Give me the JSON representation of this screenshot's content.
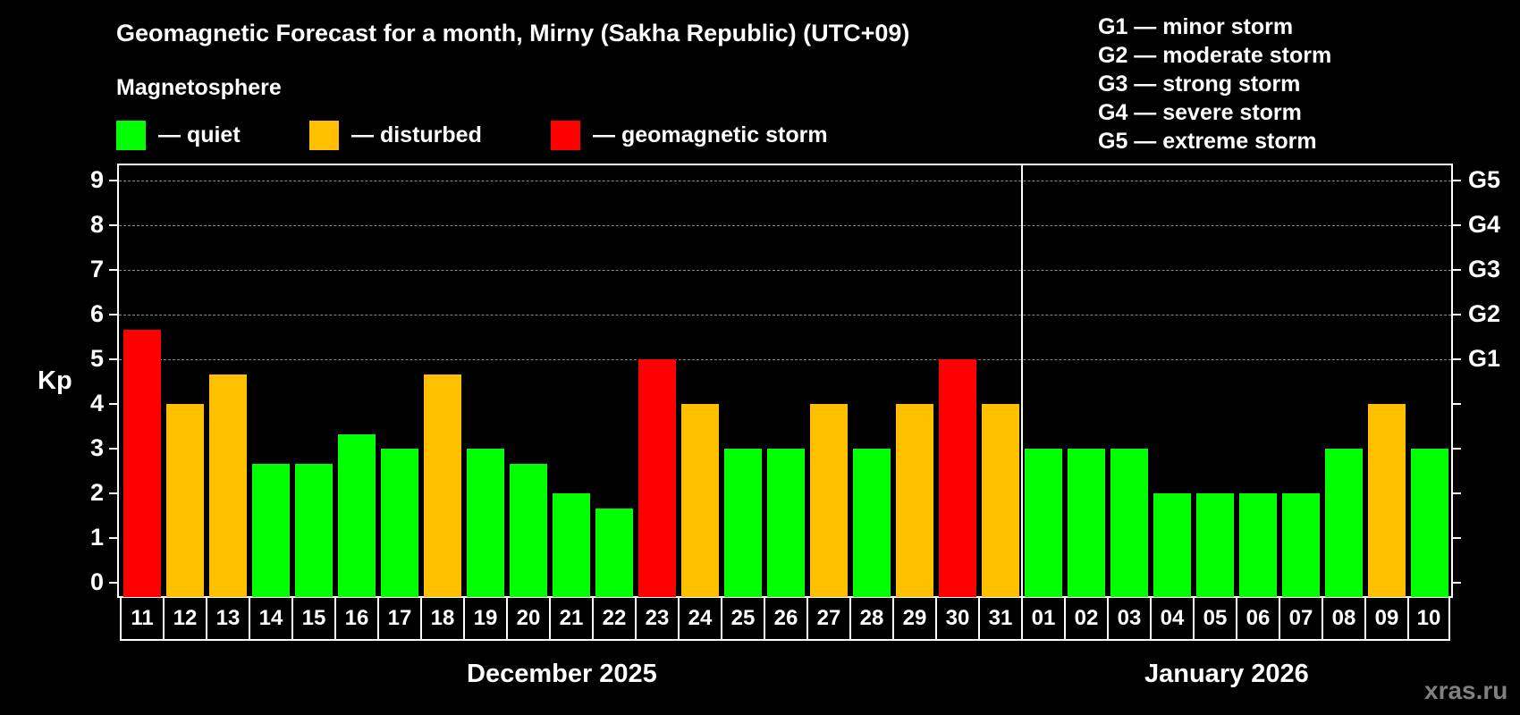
{
  "title": "Geomagnetic Forecast for a month, Mirny (Sakha Republic) (UTC+09)",
  "legend": {
    "heading": "Magnetosphere",
    "items": [
      {
        "label": "— quiet",
        "color": "#00ff00"
      },
      {
        "label": "— disturbed",
        "color": "#ffc000"
      },
      {
        "label": "— geomagnetic storm",
        "color": "#ff0000"
      }
    ]
  },
  "g_scale_legend": [
    "G1 — minor storm",
    "G2 — moderate storm",
    "G3 — strong storm",
    "G4 — severe storm",
    "G5 — extreme storm"
  ],
  "axes": {
    "ylabel": "Kp",
    "yticks": [
      "0",
      "1",
      "2",
      "3",
      "4",
      "5",
      "6",
      "7",
      "8",
      "9"
    ],
    "right_labels": {
      "5": "G1",
      "6": "G2",
      "7": "G3",
      "8": "G4",
      "9": "G5"
    }
  },
  "months": {
    "first": "December 2025",
    "second": "January 2026"
  },
  "watermark": "xras.ru",
  "chart_data": {
    "type": "bar",
    "title": "Geomagnetic Forecast for a month, Mirny (Sakha Republic) (UTC+09)",
    "xlabel": "",
    "ylabel": "Kp",
    "ylim": [
      0,
      9
    ],
    "grid": true,
    "categories": [
      "11",
      "12",
      "13",
      "14",
      "15",
      "16",
      "17",
      "18",
      "19",
      "20",
      "21",
      "22",
      "23",
      "24",
      "25",
      "26",
      "27",
      "28",
      "29",
      "30",
      "31",
      "01",
      "02",
      "03",
      "04",
      "05",
      "06",
      "07",
      "08",
      "09",
      "10"
    ],
    "month_groups": [
      {
        "label": "December 2025",
        "from": "11",
        "to": "31"
      },
      {
        "label": "January 2026",
        "from": "01",
        "to": "10"
      }
    ],
    "values": [
      5.67,
      4,
      4.67,
      2.67,
      2.67,
      3.33,
      3,
      4.67,
      3,
      2.67,
      2,
      1.67,
      5,
      4,
      3,
      3,
      4,
      3,
      4,
      5,
      4,
      3,
      3,
      3,
      2,
      2,
      2,
      2,
      3,
      4,
      3
    ],
    "status": [
      "storm",
      "disturbed",
      "disturbed",
      "quiet",
      "quiet",
      "quiet",
      "quiet",
      "disturbed",
      "quiet",
      "quiet",
      "quiet",
      "quiet",
      "storm",
      "disturbed",
      "quiet",
      "quiet",
      "disturbed",
      "quiet",
      "disturbed",
      "storm",
      "disturbed",
      "quiet",
      "quiet",
      "quiet",
      "quiet",
      "quiet",
      "quiet",
      "quiet",
      "quiet",
      "disturbed",
      "quiet"
    ],
    "colors": {
      "quiet": "#00ff00",
      "disturbed": "#ffc000",
      "storm": "#ff0000"
    },
    "secondary_axis": {
      "5": "G1",
      "6": "G2",
      "7": "G3",
      "8": "G4",
      "9": "G5"
    },
    "legend": [
      "quiet",
      "disturbed",
      "geomagnetic storm"
    ]
  }
}
